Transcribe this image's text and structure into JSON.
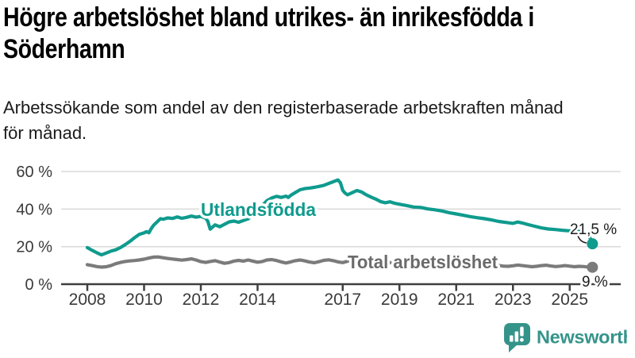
{
  "header": {
    "title_line1": "Högre arbetslöshet bland utrikes- än inrikesfödda i",
    "title_line2": "Söderhamn",
    "subtitle_line1": "Arbetssökande som andel av den registerbaserade arbetskraften månad",
    "subtitle_line2": "för månad."
  },
  "chart_data": {
    "type": "line",
    "title": "Högre arbetslöshet bland utrikes- än inrikesfödda i Söderhamn",
    "subtitle": "Arbetssökande som andel av den registerbaserade arbetskraften månad för månad.",
    "xlabel": "",
    "ylabel": "",
    "grid": true,
    "legend_position": "inline-labels",
    "xlim": [
      2007.7,
      2026.2
    ],
    "ylim": [
      0,
      62
    ],
    "y_ticks": [
      {
        "value": 0,
        "label": "0 %"
      },
      {
        "value": 20,
        "label": "20 %"
      },
      {
        "value": 40,
        "label": "40 %"
      },
      {
        "value": 60,
        "label": "60 %"
      }
    ],
    "x_ticks": [
      {
        "value": 2008,
        "label": "2008"
      },
      {
        "value": 2010,
        "label": "2010"
      },
      {
        "value": 2012,
        "label": "2012"
      },
      {
        "value": 2014,
        "label": "2014"
      },
      {
        "value": 2017,
        "label": "2017"
      },
      {
        "value": 2019,
        "label": "2019"
      },
      {
        "value": 2021,
        "label": "2021"
      },
      {
        "value": 2023,
        "label": "2023"
      },
      {
        "value": 2025,
        "label": "2025"
      }
    ],
    "series": [
      {
        "name": "Utlandsfödda",
        "color": "#0f9b8e",
        "label_color": "#0f9b8e",
        "end_label": "21,5 %",
        "end_value": 21.5,
        "points": [
          [
            2008.0,
            19.5
          ],
          [
            2008.17,
            18.0
          ],
          [
            2008.33,
            16.8
          ],
          [
            2008.5,
            15.6
          ],
          [
            2008.67,
            16.6
          ],
          [
            2008.83,
            17.6
          ],
          [
            2009.0,
            18.3
          ],
          [
            2009.17,
            19.5
          ],
          [
            2009.33,
            21.0
          ],
          [
            2009.5,
            22.8
          ],
          [
            2009.67,
            24.8
          ],
          [
            2009.83,
            26.5
          ],
          [
            2010.0,
            27.3
          ],
          [
            2010.08,
            28.0
          ],
          [
            2010.17,
            27.4
          ],
          [
            2010.25,
            29.5
          ],
          [
            2010.33,
            31.3
          ],
          [
            2010.5,
            33.8
          ],
          [
            2010.58,
            34.9
          ],
          [
            2010.67,
            34.6
          ],
          [
            2010.83,
            35.3
          ],
          [
            2011.0,
            35.0
          ],
          [
            2011.17,
            35.8
          ],
          [
            2011.33,
            35.1
          ],
          [
            2011.5,
            35.6
          ],
          [
            2011.67,
            36.3
          ],
          [
            2011.83,
            35.7
          ],
          [
            2012.0,
            36.1
          ],
          [
            2012.17,
            35.2
          ],
          [
            2012.25,
            33.4
          ],
          [
            2012.33,
            29.3
          ],
          [
            2012.5,
            31.6
          ],
          [
            2012.67,
            30.6
          ],
          [
            2012.83,
            31.9
          ],
          [
            2013.0,
            33.2
          ],
          [
            2013.17,
            33.6
          ],
          [
            2013.33,
            33.0
          ],
          [
            2013.5,
            33.9
          ],
          [
            2013.67,
            34.8
          ],
          [
            2013.83,
            37.0
          ],
          [
            2014.0,
            39.5
          ],
          [
            2014.17,
            42.0
          ],
          [
            2014.33,
            44.5
          ],
          [
            2014.5,
            45.9
          ],
          [
            2014.67,
            46.8
          ],
          [
            2014.83,
            46.2
          ],
          [
            2015.0,
            46.9
          ],
          [
            2015.08,
            46.2
          ],
          [
            2015.17,
            47.3
          ],
          [
            2015.33,
            48.8
          ],
          [
            2015.5,
            50.3
          ],
          [
            2015.67,
            50.9
          ],
          [
            2015.83,
            51.2
          ],
          [
            2016.0,
            51.6
          ],
          [
            2016.17,
            52.1
          ],
          [
            2016.33,
            52.6
          ],
          [
            2016.5,
            53.6
          ],
          [
            2016.67,
            54.6
          ],
          [
            2016.83,
            55.5
          ],
          [
            2016.92,
            54.0
          ],
          [
            2017.0,
            50.0
          ],
          [
            2017.08,
            48.6
          ],
          [
            2017.17,
            47.6
          ],
          [
            2017.33,
            48.7
          ],
          [
            2017.5,
            49.9
          ],
          [
            2017.67,
            49.1
          ],
          [
            2017.83,
            47.6
          ],
          [
            2018.0,
            46.4
          ],
          [
            2018.17,
            45.3
          ],
          [
            2018.33,
            44.0
          ],
          [
            2018.5,
            43.4
          ],
          [
            2018.67,
            43.9
          ],
          [
            2018.83,
            43.1
          ],
          [
            2019.0,
            42.6
          ],
          [
            2019.25,
            41.9
          ],
          [
            2019.5,
            41.1
          ],
          [
            2019.75,
            40.9
          ],
          [
            2020.0,
            40.1
          ],
          [
            2020.25,
            39.6
          ],
          [
            2020.5,
            39.0
          ],
          [
            2020.75,
            38.1
          ],
          [
            2021.0,
            37.4
          ],
          [
            2021.25,
            36.7
          ],
          [
            2021.5,
            36.0
          ],
          [
            2021.75,
            35.4
          ],
          [
            2022.0,
            34.9
          ],
          [
            2022.25,
            34.2
          ],
          [
            2022.5,
            33.4
          ],
          [
            2022.75,
            32.9
          ],
          [
            2023.0,
            32.4
          ],
          [
            2023.17,
            33.1
          ],
          [
            2023.33,
            32.6
          ],
          [
            2023.5,
            31.9
          ],
          [
            2023.75,
            30.9
          ],
          [
            2024.0,
            30.0
          ],
          [
            2024.25,
            29.4
          ],
          [
            2024.5,
            29.1
          ],
          [
            2024.75,
            28.7
          ],
          [
            2025.0,
            28.4
          ],
          [
            2025.17,
            27.9
          ],
          [
            2025.33,
            28.1
          ],
          [
            2025.5,
            27.3
          ],
          [
            2025.67,
            26.3
          ],
          [
            2025.8,
            21.5
          ]
        ]
      },
      {
        "name": "Total arbetslöshet",
        "color": "#7b7b7b",
        "label_color": "#6b6b6b",
        "end_label": "9 %",
        "end_value": 9,
        "points": [
          [
            2008.0,
            10.4
          ],
          [
            2008.17,
            9.9
          ],
          [
            2008.33,
            9.4
          ],
          [
            2008.5,
            9.1
          ],
          [
            2008.67,
            9.3
          ],
          [
            2008.83,
            9.9
          ],
          [
            2009.0,
            10.9
          ],
          [
            2009.17,
            11.6
          ],
          [
            2009.33,
            12.1
          ],
          [
            2009.5,
            12.4
          ],
          [
            2009.67,
            12.6
          ],
          [
            2009.83,
            12.9
          ],
          [
            2010.0,
            13.3
          ],
          [
            2010.17,
            13.9
          ],
          [
            2010.33,
            14.4
          ],
          [
            2010.5,
            14.5
          ],
          [
            2010.67,
            14.1
          ],
          [
            2010.83,
            13.7
          ],
          [
            2011.0,
            13.4
          ],
          [
            2011.17,
            13.1
          ],
          [
            2011.33,
            12.8
          ],
          [
            2011.5,
            13.1
          ],
          [
            2011.67,
            13.5
          ],
          [
            2011.83,
            12.9
          ],
          [
            2012.0,
            12.0
          ],
          [
            2012.17,
            11.6
          ],
          [
            2012.33,
            12.1
          ],
          [
            2012.5,
            12.5
          ],
          [
            2012.67,
            11.8
          ],
          [
            2012.83,
            11.1
          ],
          [
            2013.0,
            11.5
          ],
          [
            2013.17,
            12.3
          ],
          [
            2013.33,
            12.7
          ],
          [
            2013.5,
            12.3
          ],
          [
            2013.67,
            12.9
          ],
          [
            2013.83,
            12.3
          ],
          [
            2014.0,
            11.7
          ],
          [
            2014.17,
            12.1
          ],
          [
            2014.33,
            12.9
          ],
          [
            2014.5,
            13.1
          ],
          [
            2014.67,
            12.6
          ],
          [
            2014.83,
            11.9
          ],
          [
            2015.0,
            11.3
          ],
          [
            2015.17,
            11.9
          ],
          [
            2015.33,
            12.5
          ],
          [
            2015.5,
            12.9
          ],
          [
            2015.67,
            12.4
          ],
          [
            2015.83,
            11.8
          ],
          [
            2016.0,
            11.4
          ],
          [
            2016.17,
            12.0
          ],
          [
            2016.33,
            12.7
          ],
          [
            2016.5,
            13.0
          ],
          [
            2016.67,
            12.5
          ],
          [
            2016.83,
            11.9
          ],
          [
            2017.0,
            11.5
          ],
          [
            2017.17,
            12.2
          ],
          [
            2017.33,
            12.8
          ],
          [
            2017.5,
            13.1
          ],
          [
            2017.67,
            12.6
          ],
          [
            2017.83,
            11.9
          ],
          [
            2018.0,
            11.6
          ],
          [
            2018.17,
            12.1
          ],
          [
            2018.33,
            12.5
          ],
          [
            2018.5,
            12.1
          ],
          [
            2018.67,
            11.5
          ],
          [
            2018.83,
            11.1
          ],
          [
            2019.0,
            11.4
          ],
          [
            2019.17,
            11.9
          ],
          [
            2019.33,
            12.2
          ],
          [
            2019.5,
            11.7
          ],
          [
            2019.67,
            11.1
          ],
          [
            2019.83,
            10.8
          ],
          [
            2020.0,
            11.1
          ],
          [
            2020.17,
            11.7
          ],
          [
            2020.33,
            12.0
          ],
          [
            2020.5,
            11.6
          ],
          [
            2020.67,
            11.1
          ],
          [
            2020.83,
            10.7
          ],
          [
            2021.0,
            10.9
          ],
          [
            2021.17,
            11.3
          ],
          [
            2021.33,
            11.0
          ],
          [
            2021.5,
            10.6
          ],
          [
            2021.67,
            10.1
          ],
          [
            2021.83,
            9.9
          ],
          [
            2022.0,
            10.2
          ],
          [
            2022.17,
            10.6
          ],
          [
            2022.33,
            10.3
          ],
          [
            2022.5,
            10.0
          ],
          [
            2022.67,
            9.6
          ],
          [
            2022.83,
            9.5
          ],
          [
            2023.0,
            9.8
          ],
          [
            2023.17,
            10.2
          ],
          [
            2023.33,
            9.9
          ],
          [
            2023.5,
            9.6
          ],
          [
            2023.67,
            9.3
          ],
          [
            2023.83,
            9.5
          ],
          [
            2024.0,
            9.9
          ],
          [
            2024.17,
            10.1
          ],
          [
            2024.33,
            9.7
          ],
          [
            2024.5,
            9.4
          ],
          [
            2024.67,
            9.6
          ],
          [
            2024.83,
            9.9
          ],
          [
            2025.0,
            9.6
          ],
          [
            2025.17,
            9.3
          ],
          [
            2025.33,
            9.5
          ],
          [
            2025.5,
            9.4
          ],
          [
            2025.67,
            9.1
          ],
          [
            2025.8,
            9.0
          ]
        ]
      }
    ],
    "colors": {
      "foreign_born_line": "#0f9b8e",
      "total_line": "#7b7b7b",
      "grid": "#d9d9d9",
      "axis": "#3f3f3f",
      "tick_label": "#3a3a3a",
      "end_label_text": "#1c1c1c"
    }
  },
  "footer": {
    "brand": "Newsworthy",
    "brand_color": "#35948a"
  }
}
